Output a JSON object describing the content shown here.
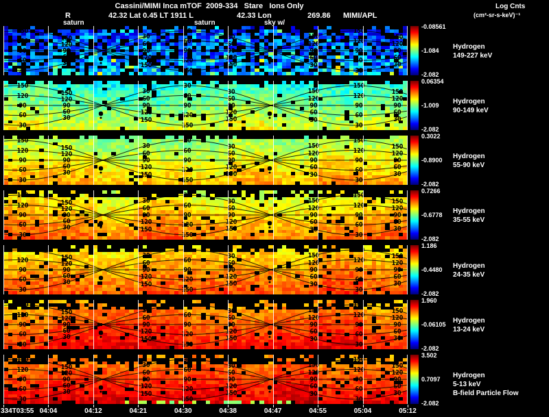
{
  "header": {
    "title": "Cassini/MIMI Inca mTOF  2009-334   Stare   Ions Only",
    "ephemeris": [
      "R",
      "42.32 Lat 0.45 LT 1911 L",
      "42.33 Lon",
      "269.86",
      "MIMI/APL"
    ],
    "units_line1": "Log Cnts",
    "units_line2": "(cm²-sr-s-keV)⁻¹",
    "annotations": [
      "saturn",
      "saturn",
      "sky w/"
    ]
  },
  "chart_data": {
    "type": "heatmap",
    "title": "Cassini/MIMI Inca mTOF 2009-334 Stare Ions Only",
    "x_axis_ticks_note": "spacecraft event time, day-of-year T hh:mm",
    "time_ticks": [
      "334T03:55",
      "04:04",
      "04:12",
      "04:21",
      "04:30",
      "04:38",
      "04:47",
      "04:55",
      "05:04",
      "05:12"
    ],
    "contour_levels": [
      30,
      60,
      90,
      120,
      150
    ],
    "colorbar": {
      "label": "Log Cnts",
      "units": "(cm²-sr-s-keV)⁻¹",
      "colormap": "jet"
    },
    "panels": [
      {
        "species": "Hydrogen",
        "energy": "149-227 keV",
        "cb_ticks": [
          "-0.08561",
          "-1.084",
          "-2.082"
        ],
        "tex": {
          "v_top": 0.17,
          "v_bot": 0.3,
          "noise": 0.13,
          "black": 0.3,
          "top_black_rows": 1,
          "spike": 0.22,
          "spike_p": 0.07
        }
      },
      {
        "species": "Hydrogen",
        "energy": "90-149 keV",
        "cb_ticks": [
          "0.06354",
          "-1.009",
          "-2.082"
        ],
        "tex": {
          "v_top": 0.4,
          "v_bot": 0.6,
          "noise": 0.07,
          "black": 0.05,
          "top_black_rows": 1
        }
      },
      {
        "species": "Hydrogen",
        "energy": "55-90 keV",
        "cb_ticks": [
          "0.3022",
          "-0.8900",
          "-2.082"
        ],
        "tex": {
          "v_top": 0.52,
          "v_bot": 0.71,
          "noise": 0.06,
          "black": 0.04,
          "top_black_rows": 1
        }
      },
      {
        "species": "Hydrogen",
        "energy": "35-55 keV",
        "cb_ticks": [
          "0.7266",
          "-0.6778",
          "-2.082"
        ],
        "tex": {
          "v_top": 0.6,
          "v_bot": 0.77,
          "noise": 0.06,
          "black": 0.07,
          "top_black_rows": 2
        }
      },
      {
        "species": "Hydrogen",
        "energy": "24-35 keV",
        "cb_ticks": [
          "1.186",
          "-0.4480",
          "-2.082"
        ],
        "tex": {
          "v_top": 0.65,
          "v_bot": 0.81,
          "noise": 0.06,
          "black": 0.06,
          "top_black_rows": 2
        }
      },
      {
        "species": "Hydrogen",
        "energy": "13-24 keV",
        "cb_ticks": [
          "1.960",
          "-0.06105",
          "-2.082"
        ],
        "tex": {
          "v_top": 0.7,
          "v_bot": 0.87,
          "noise": 0.05,
          "black": 0.06,
          "top_black_rows": 3
        }
      },
      {
        "species": "Hydrogen",
        "energy": "5-13 keV",
        "extra": "B-field Particle Flow",
        "cb_ticks": [
          "3.502",
          "0.7097",
          "-2.082"
        ],
        "tex": {
          "v_top": 0.73,
          "v_bot": 0.91,
          "noise": 0.05,
          "black": 0.08,
          "top_black_rows": 3
        }
      }
    ]
  }
}
